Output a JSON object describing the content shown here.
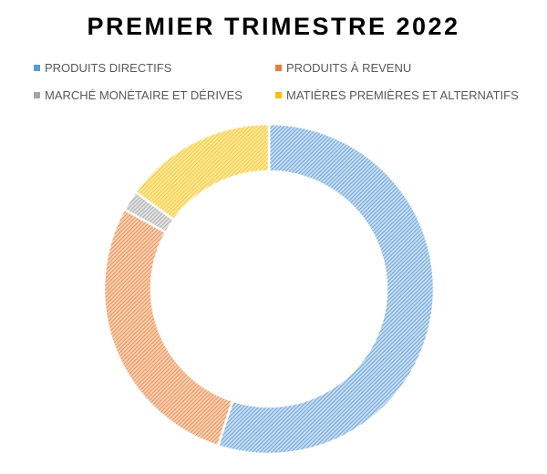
{
  "chart_data": {
    "type": "pie",
    "subtype": "donut",
    "title": "PREMIER TRIMESTRE 2022",
    "legend_position": "top",
    "fill": "diagonal-hatch",
    "series": [
      {
        "name": "PRODUITS DIRECTIFS",
        "value": 55,
        "color": "#5B9BD5"
      },
      {
        "name": "PRODUITS À REVENU",
        "value": 28,
        "color": "#ED7D31"
      },
      {
        "name": "MARCHÉ MONÉTAIRE ET DÉRIVES",
        "value": 2,
        "color": "#A5A5A5"
      },
      {
        "name": "MATIÈRES PREMIÈRES ET ALTERNATIFS",
        "value": 15,
        "color": "#FFC000"
      }
    ]
  }
}
